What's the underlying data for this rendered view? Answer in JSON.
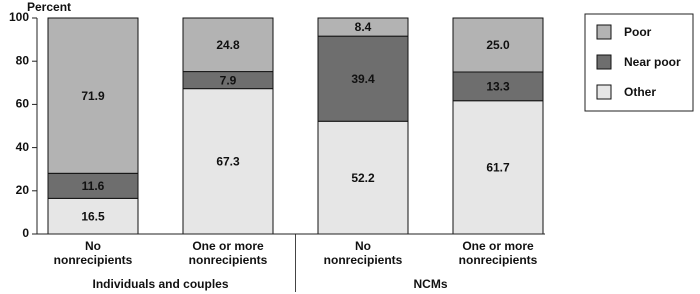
{
  "chart_data": {
    "type": "stacked-bar",
    "y_label": "Percent",
    "categories": [
      [
        "No",
        "nonrecipients"
      ],
      [
        "One or more",
        "nonrecipients"
      ],
      [
        "No",
        "nonrecipients"
      ],
      [
        "One or more",
        "nonrecipients"
      ]
    ],
    "groups": [
      "Individuals and couples",
      "NCMs"
    ],
    "series": [
      {
        "name": "Other",
        "color": "#e6e6e6",
        "values": [
          16.5,
          67.3,
          52.2,
          61.7
        ]
      },
      {
        "name": "Near poor",
        "color": "#6e6e6e",
        "values": [
          11.6,
          7.9,
          39.4,
          13.3
        ]
      },
      {
        "name": "Poor",
        "color": "#b3b3b3",
        "values": [
          71.9,
          24.8,
          8.4,
          25.0
        ],
        "value_labels": [
          "71.9",
          "24.8",
          "8.4",
          "25.0"
        ]
      }
    ],
    "ylim": [
      0,
      100
    ],
    "yticks": [
      0,
      20,
      40,
      60,
      80,
      100
    ],
    "grid": false,
    "legend": "right"
  }
}
